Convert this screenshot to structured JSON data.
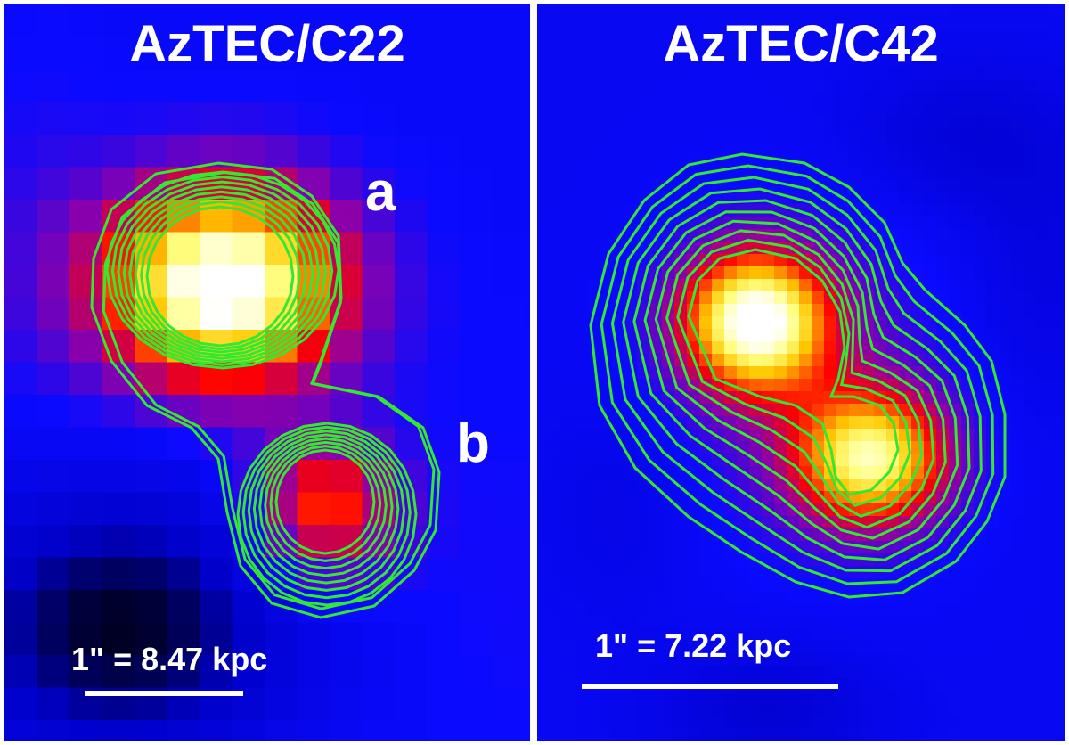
{
  "panels": [
    {
      "title": "AzTEC/C22",
      "components": [
        "a",
        "b"
      ],
      "scale_label": "1\" = 8.47 kpc"
    },
    {
      "title": "AzTEC/C42",
      "scale_label": "1\" = 7.22 kpc"
    }
  ],
  "colors": {
    "background_low": "#0000ff",
    "contour": "#33e833",
    "label": "#ffffff"
  }
}
